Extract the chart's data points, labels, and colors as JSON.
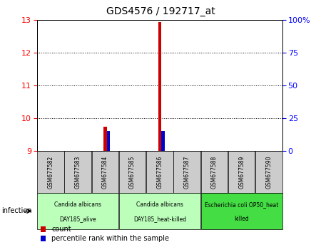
{
  "title": "GDS4576 / 192717_at",
  "samples": [
    "GSM677582",
    "GSM677583",
    "GSM677584",
    "GSM677585",
    "GSM677586",
    "GSM677587",
    "GSM677588",
    "GSM677589",
    "GSM677590"
  ],
  "count_values": [
    null,
    null,
    9.75,
    null,
    12.95,
    null,
    null,
    null,
    null
  ],
  "percentile_values": [
    null,
    null,
    9.62,
    null,
    9.62,
    null,
    null,
    null,
    null
  ],
  "ylim_left": [
    9,
    13
  ],
  "ylim_right": [
    0,
    100
  ],
  "yticks_left": [
    9,
    10,
    11,
    12,
    13
  ],
  "yticks_right": [
    0,
    25,
    50,
    75,
    100
  ],
  "ytick_labels_right": [
    "0",
    "25",
    "50",
    "75",
    "100%"
  ],
  "groups": [
    {
      "label": "Candida albicans\nDAY185_alive",
      "start": 0,
      "end": 2,
      "color": "#bbffbb"
    },
    {
      "label": "Candida albicans\nDAY185_heat-killed",
      "start": 3,
      "end": 5,
      "color": "#bbffbb"
    },
    {
      "label": "Escherichia coli OP50_heat\nkilled",
      "start": 6,
      "end": 8,
      "color": "#44dd44"
    }
  ],
  "group_label_name": "infection",
  "bar_width": 0.12,
  "count_color": "#cc0000",
  "percentile_color": "#0000cc",
  "bg_color": "#ffffff",
  "plot_bg_color": "#ffffff",
  "grid_color": "#000000",
  "sample_box_color": "#cccccc",
  "legend_labels": [
    "count",
    "percentile rank within the sample"
  ]
}
